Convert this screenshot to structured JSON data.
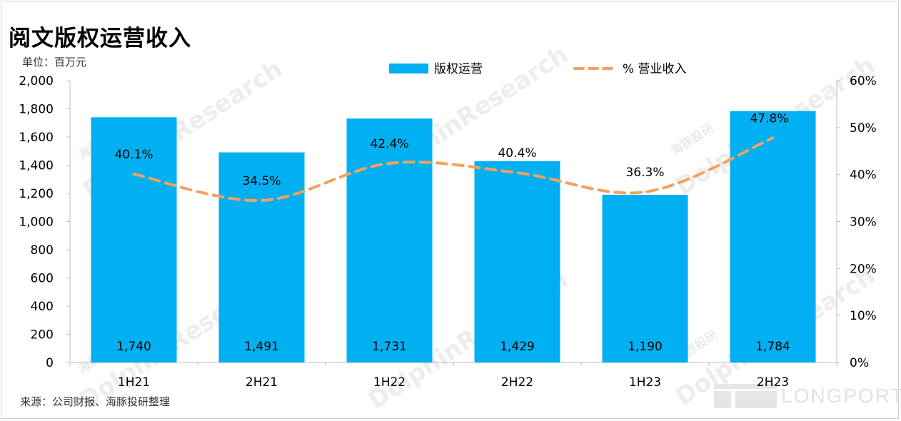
{
  "title": "阅文版权运营收入",
  "unit_label": "单位：百万元",
  "source": "来源：公司财报、海豚投研整理",
  "watermarks": {
    "en": "DolphinResearch",
    "cn": "海豚投研",
    "brand": "LONGPORT"
  },
  "colors": {
    "bar": "#00B0F0",
    "line": "#F4A15D",
    "axis": "#bfbfbf",
    "text": "#000000"
  },
  "chart_data": {
    "type": "bar",
    "categories": [
      "1H21",
      "2H21",
      "1H22",
      "2H22",
      "1H23",
      "2H23"
    ],
    "series": [
      {
        "name": "版权运营",
        "type": "bar",
        "axis": "left",
        "values": [
          1740,
          1491,
          1731,
          1429,
          1190,
          1784
        ],
        "labels": [
          "1,740",
          "1,491",
          "1,731",
          "1,429",
          "1,190",
          "1,784"
        ]
      },
      {
        "name": "% 营业收入",
        "type": "line",
        "axis": "right",
        "style": "dashed",
        "values": [
          40.1,
          34.5,
          42.4,
          40.4,
          36.3,
          47.8
        ],
        "labels": [
          "40.1%",
          "34.5%",
          "42.4%",
          "40.4%",
          "36.3%",
          "47.8%"
        ]
      }
    ],
    "y_left": {
      "min": 0,
      "max": 2000,
      "step": 200,
      "ticks": [
        "0",
        "200",
        "400",
        "600",
        "800",
        "1,000",
        "1,200",
        "1,400",
        "1,600",
        "1,800",
        "2,000"
      ]
    },
    "y_right": {
      "min": 0,
      "max": 60,
      "step": 10,
      "ticks": [
        "0%",
        "10%",
        "20%",
        "30%",
        "40%",
        "50%",
        "60%"
      ]
    },
    "legend_position": "top-center",
    "grid": false
  }
}
